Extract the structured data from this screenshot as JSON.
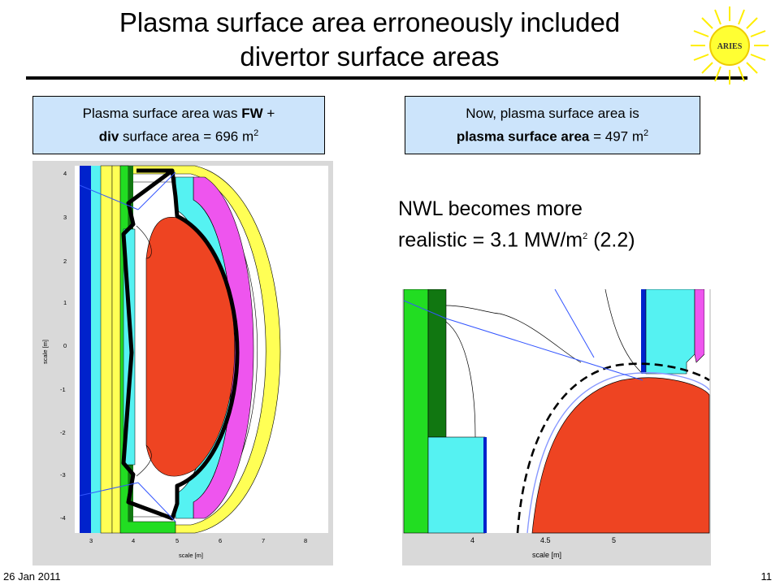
{
  "title": {
    "line1": "Plasma surface area erroneously included",
    "line2": "divertor surface areas"
  },
  "logo": {
    "text": "ARIES"
  },
  "box_left": {
    "line1_prefix": "Plasma surface area was ",
    "line1_bold": "FW",
    "line1_suffix": " +",
    "line2_bold": "div",
    "line2_rest": " surface area = 696 m",
    "line2_sup": "2"
  },
  "box_right": {
    "line1": "Now, plasma surface area is",
    "line2_bold": "plasma surface area",
    "line2_rest": " = 497 m",
    "line2_sup": "2"
  },
  "nwl": {
    "line1": "NWL becomes more",
    "line2_prefix": "realistic = 3.1 MW/m",
    "line2_sup": "2",
    "line2_suffix": " (2.2)"
  },
  "figure_left": {
    "ylabel": "scale [m]",
    "xlabel": "scale [m]",
    "yticks": [
      "4",
      "3",
      "2",
      "1",
      "0",
      "-1",
      "-2",
      "-3",
      "-4"
    ],
    "xticks": [
      "3",
      "4",
      "5",
      "6",
      "7",
      "8"
    ]
  },
  "figure_right": {
    "xlabel": "scale [m]",
    "xticks": [
      "4",
      "4.5",
      "5"
    ]
  },
  "footer": {
    "date": "26 Jan 2011",
    "page": "11"
  },
  "colors": {
    "plasma": "#ee4422",
    "cyan": "#55f2f2",
    "magenta": "#ee55ee",
    "yellow": "#ffff55",
    "green": "#22dd22",
    "dark_green": "#117711",
    "blue": "#0022cc",
    "box_fill": "#cce4fb"
  }
}
